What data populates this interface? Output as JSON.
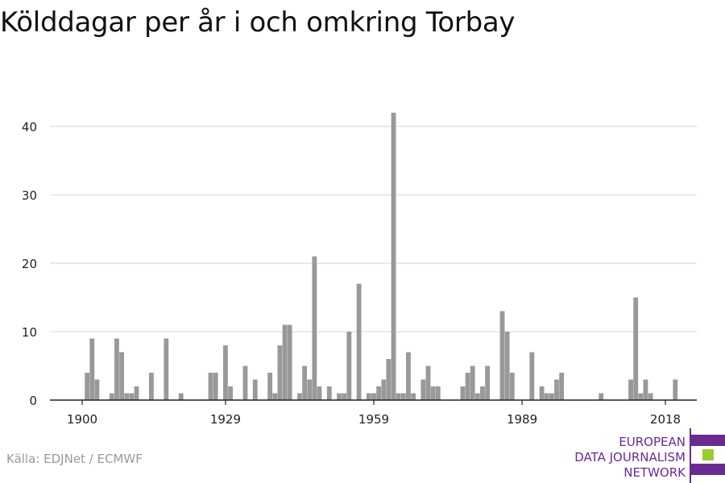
{
  "title": "Kölddagar per år i och omkring Torbay",
  "source": "Källa: EDJNet / ECMWF",
  "logo": {
    "line1": "EUROPEAN",
    "line2": "DATA JOURNALISM",
    "line3": "NETWORK",
    "colors": {
      "purple": "#6a2b91",
      "green": "#9acd32"
    }
  },
  "colors": {
    "bar": "#999999",
    "grid": "#dddddd",
    "axis": "#222222"
  },
  "chart_data": {
    "type": "bar",
    "title": "Kölddagar per år i och omkring Torbay",
    "xlabel": "",
    "ylabel": "",
    "x_ticks": [
      "1900",
      "1929",
      "1959",
      "1989",
      "2018"
    ],
    "y_ticks": [
      0,
      10,
      20,
      30,
      40
    ],
    "ylim": [
      0,
      42
    ],
    "grid": true,
    "x": [
      1900,
      1901,
      1902,
      1903,
      1904,
      1905,
      1906,
      1907,
      1908,
      1909,
      1910,
      1911,
      1912,
      1913,
      1914,
      1915,
      1916,
      1917,
      1918,
      1919,
      1920,
      1921,
      1922,
      1923,
      1924,
      1925,
      1926,
      1927,
      1928,
      1929,
      1930,
      1931,
      1932,
      1933,
      1934,
      1935,
      1936,
      1937,
      1938,
      1939,
      1940,
      1941,
      1942,
      1943,
      1944,
      1945,
      1946,
      1947,
      1948,
      1949,
      1950,
      1951,
      1952,
      1953,
      1954,
      1955,
      1956,
      1957,
      1958,
      1959,
      1960,
      1961,
      1962,
      1963,
      1964,
      1965,
      1966,
      1967,
      1968,
      1969,
      1970,
      1971,
      1972,
      1973,
      1974,
      1975,
      1976,
      1977,
      1978,
      1979,
      1980,
      1981,
      1982,
      1983,
      1984,
      1985,
      1986,
      1987,
      1988,
      1989,
      1990,
      1991,
      1992,
      1993,
      1994,
      1995,
      1996,
      1997,
      1998,
      1999,
      2000,
      2001,
      2002,
      2003,
      2004,
      2005,
      2006,
      2007,
      2008,
      2009,
      2010,
      2011,
      2012,
      2013,
      2014,
      2015,
      2016,
      2017,
      2018,
      2019,
      2020
    ],
    "values": [
      0,
      4,
      9,
      3,
      0,
      0,
      1,
      9,
      7,
      1,
      1,
      2,
      0,
      0,
      4,
      0,
      0,
      9,
      0,
      0,
      1,
      0,
      0,
      0,
      0,
      0,
      4,
      4,
      0,
      8,
      2,
      0,
      0,
      5,
      0,
      3,
      0,
      0,
      4,
      1,
      8,
      11,
      11,
      0,
      1,
      5,
      3,
      21,
      2,
      0,
      2,
      0,
      1,
      1,
      10,
      0,
      17,
      0,
      1,
      1,
      2,
      3,
      6,
      42,
      1,
      1,
      7,
      1,
      0,
      3,
      5,
      2,
      2,
      0,
      0,
      0,
      0,
      2,
      4,
      5,
      1,
      2,
      5,
      0,
      0,
      13,
      10,
      4,
      0,
      0,
      0,
      7,
      0,
      2,
      1,
      1,
      3,
      4,
      0,
      0,
      0,
      0,
      0,
      0,
      0,
      1,
      0,
      0,
      0,
      0,
      0,
      3,
      15,
      1,
      3,
      1,
      0,
      0,
      0,
      0,
      3
    ]
  }
}
